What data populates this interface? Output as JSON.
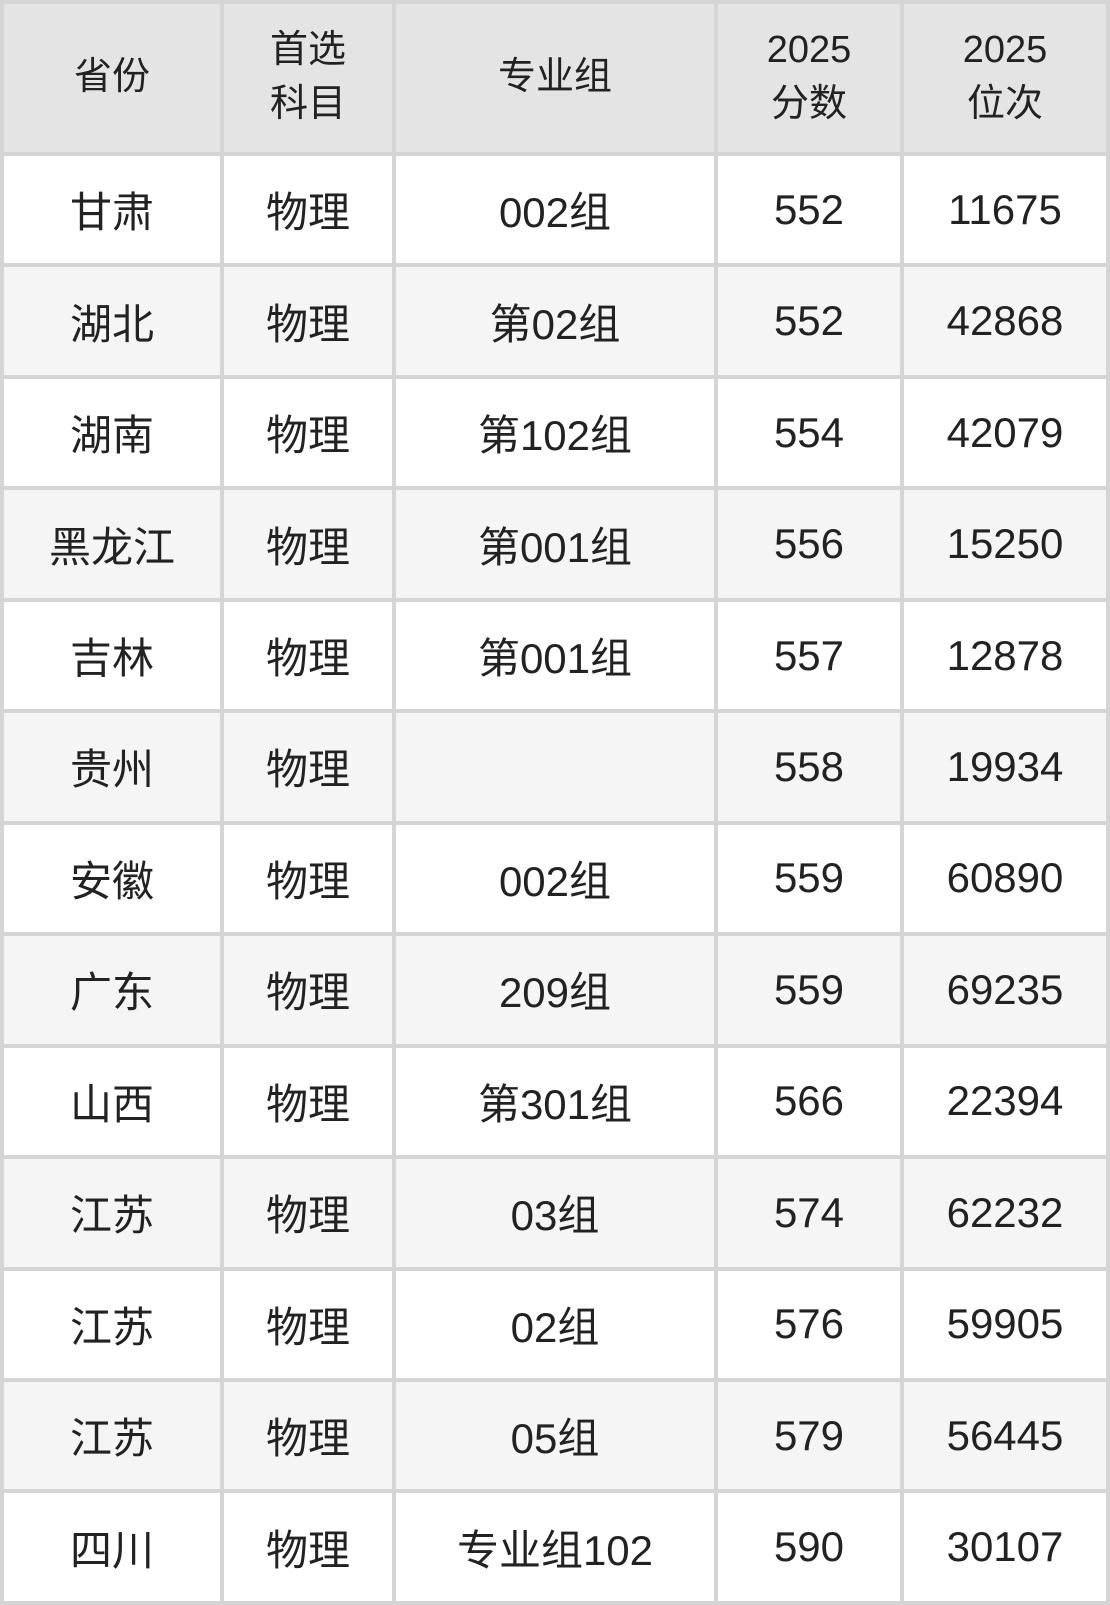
{
  "colors": {
    "grid_line": "#d5d5d5",
    "header_bg": "#e4e4e4",
    "row_stripe": "#f5f5f6",
    "row_white": "#ffffff",
    "text": "#222222"
  },
  "chart_data": {
    "type": "table",
    "title": "",
    "columns": [
      "省份",
      "首选\n科目",
      "专业组",
      "2025\n分数",
      "2025\n位次"
    ],
    "rows": [
      [
        "甘肃",
        "物理",
        "002组",
        "552",
        "11675"
      ],
      [
        "湖北",
        "物理",
        "第02组",
        "552",
        "42868"
      ],
      [
        "湖南",
        "物理",
        "第102组",
        "554",
        "42079"
      ],
      [
        "黑龙江",
        "物理",
        "第001组",
        "556",
        "15250"
      ],
      [
        "吉林",
        "物理",
        "第001组",
        "557",
        "12878"
      ],
      [
        "贵州",
        "物理",
        "",
        "558",
        "19934"
      ],
      [
        "安徽",
        "物理",
        "002组",
        "559",
        "60890"
      ],
      [
        "广东",
        "物理",
        "209组",
        "559",
        "69235"
      ],
      [
        "山西",
        "物理",
        "第301组",
        "566",
        "22394"
      ],
      [
        "江苏",
        "物理",
        "03组",
        "574",
        "62232"
      ],
      [
        "江苏",
        "物理",
        "02组",
        "576",
        "59905"
      ],
      [
        "江苏",
        "物理",
        "05组",
        "579",
        "56445"
      ],
      [
        "四川",
        "物理",
        "专业组102",
        "590",
        "30107"
      ]
    ],
    "layout": {
      "header_rows": 1,
      "striped": true,
      "stripe_pattern": "even-rows-gray",
      "grid": true,
      "text_align": "center"
    }
  }
}
